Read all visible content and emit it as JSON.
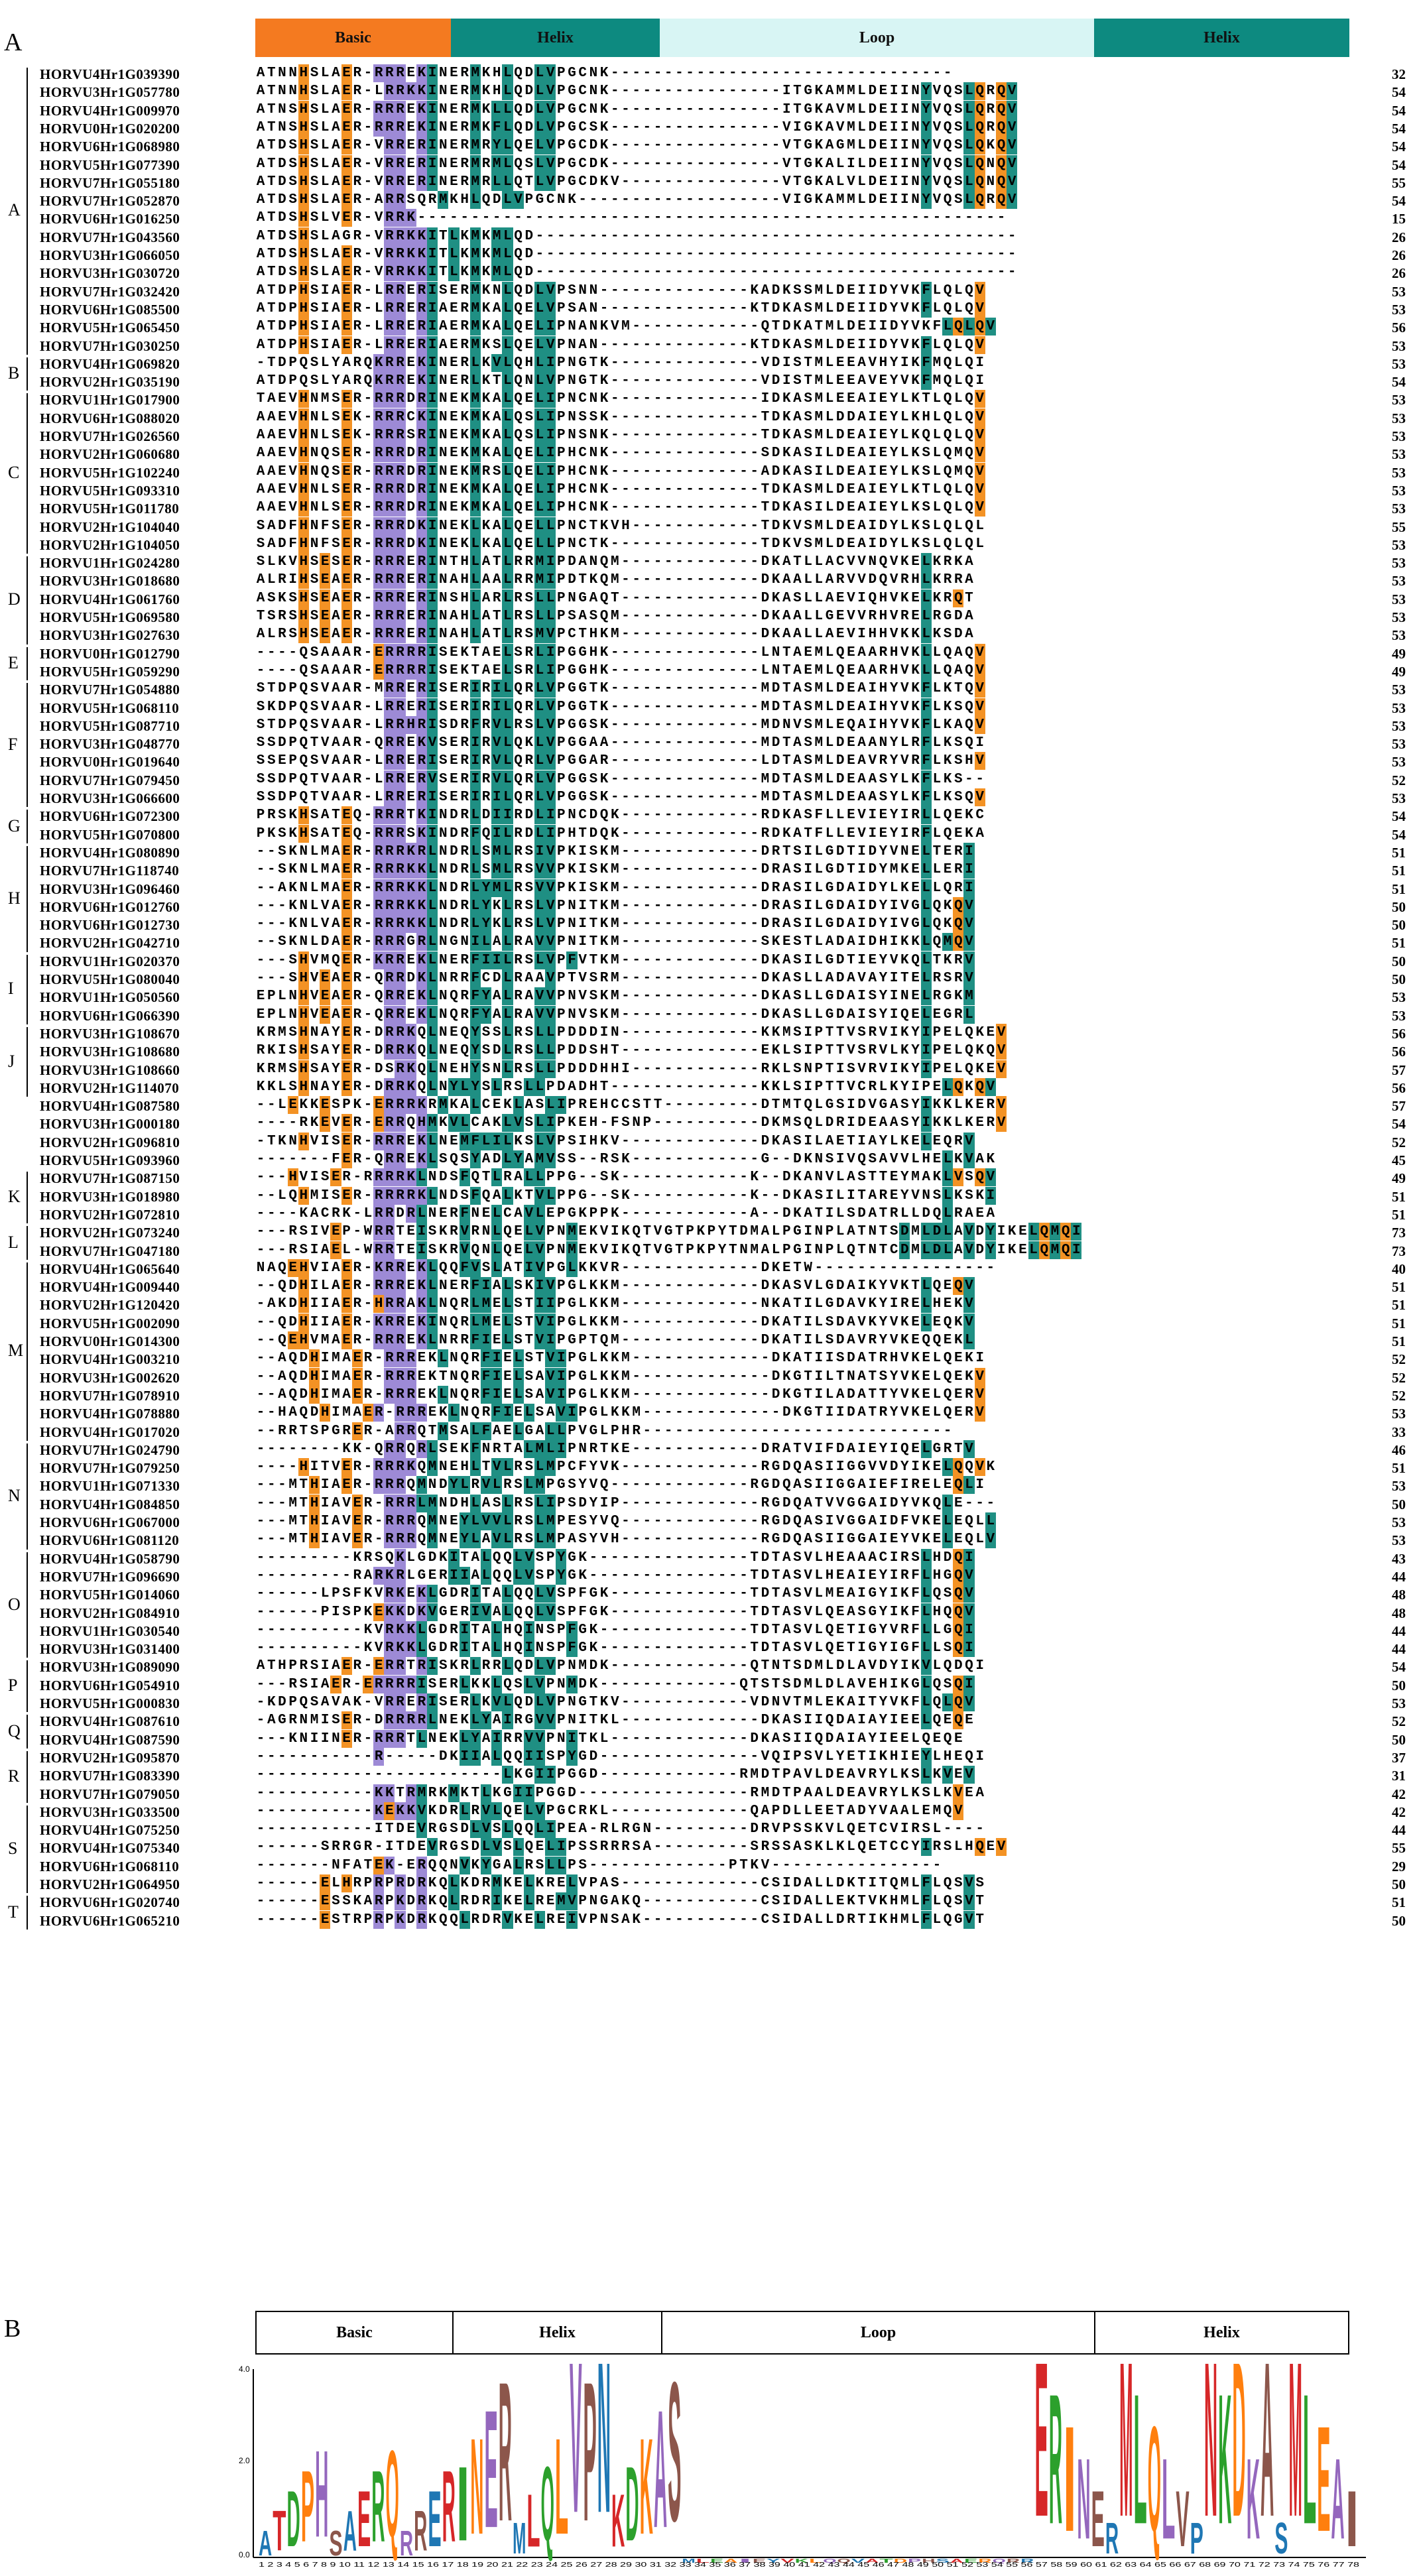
{
  "panels": {
    "a": "A",
    "b": "B"
  },
  "domains": [
    {
      "label": "Basic",
      "color": "#f47a20"
    },
    {
      "label": "Helix",
      "color": "#0d8a80"
    },
    {
      "label": "Loop",
      "color": "#d8f5f4"
    },
    {
      "label": "Helix",
      "color": "#0d8a80"
    }
  ],
  "logo_domains": [
    "Basic",
    "Helix",
    "Loop",
    "Helix"
  ],
  "logo_y_ticks": [
    "0.0",
    "2.0",
    "4.0"
  ],
  "groups": [
    {
      "label": "A",
      "rows": [
        {
          "name": "HORVU4Hr1G039390",
          "seq": "ATNNHSLAER-RRREKINERMKHLQDLVPGCNK--------------------------------",
          "len": "32"
        },
        {
          "name": "HORVU3Hr1G057780",
          "seq": "ATNNHSLAER-LRRKKINERMKHLQDLVPGCNK----------------ITGKAMMLDEIINYVQSLQRQV",
          "len": "54"
        },
        {
          "name": "HORVU4Hr1G009970",
          "seq": "ATNSHSLAER-RRREKINERMKLLQDLVPGCNK----------------ITGKAVMLDEIINYVQSLQRQV",
          "len": "54"
        },
        {
          "name": "HORVU0Hr1G020200",
          "seq": "ATNSHSLAER-RRREKINERMKFLQDLVPGCSK----------------VIGKAVMLDEIINYVQSLQRQV",
          "len": "54"
        },
        {
          "name": "HORVU6Hr1G068980",
          "seq": "ATDSHSLAER-VRRERINERMRYLQELVPGCDK----------------VTGKAGMLDEIINYVQSLQKQV",
          "len": "54"
        },
        {
          "name": "HORVU5Hr1G077390",
          "seq": "ATDSHSLAER-VRRERINERMRMLQSLVPGCDK----------------VTGKALILDEIINYVQSLQNQV",
          "len": "54"
        },
        {
          "name": "HORVU7Hr1G055180",
          "seq": "ATDSHSLAER-VRRERINERMRLLQTLVPGCDKV---------------VTGKALVLDEIINYVQSLQNQV",
          "len": "55"
        },
        {
          "name": "HORVU7Hr1G052870",
          "seq": "ATDSHSLAER-ARRSQRMKHLQDLVPGCNK-------------------VIGKAMMLDEIINYVQSLQRQV",
          "len": "54"
        },
        {
          "name": "HORVU6Hr1G016250",
          "seq": "ATDSHSLVER-VRRK-------------------------------------------------------",
          "len": "15"
        },
        {
          "name": "HORVU7Hr1G043560",
          "seq": "ATDSHSLAGR-VRRKKITLKMKMLQD---------------------------------------------",
          "len": "26"
        },
        {
          "name": "HORVU3Hr1G066050",
          "seq": "ATDSHSLAER-VRRKKITLKMKMLQD---------------------------------------------",
          "len": "26"
        },
        {
          "name": "HORVU3Hr1G030720",
          "seq": "ATDSHSLAER-VRRKKITLKMKMLQD---------------------------------------------",
          "len": "26"
        },
        {
          "name": "HORVU7Hr1G032420",
          "seq": "ATDPHSIAER-LRRERISERMKNLQDLVPSNN--------------KADKSSMLDEIIDYVKFLQLQV",
          "len": "53"
        },
        {
          "name": "HORVU6Hr1G085500",
          "seq": "ATDPHSIAER-LRRERIAERMKALQELVPSAN--------------KTDKASMLDEIIDYVKFLQLQV",
          "len": "53"
        },
        {
          "name": "HORVU5Hr1G065450",
          "seq": "ATDPHSIAER-LRRERIAERMKALQELIPNANKVM------------QTDKATMLDEIIDYVKFLQLQV",
          "len": "56"
        },
        {
          "name": "HORVU7Hr1G030250",
          "seq": "ATDPHSIAER-LRRERIAERMKSLQELVPNAN--------------KTDKASMLDEIIDYVKFLQLQV",
          "len": "53"
        }
      ]
    },
    {
      "label": "B",
      "rows": [
        {
          "name": "HORVU4Hr1G069820",
          "seq": "-TDPQSLYARQKRREKINERLKVLQHLIPNGTK--------------VDISTMLEEAVHYIKFMQLQI",
          "len": "53"
        },
        {
          "name": "HORVU2Hr1G035190",
          "seq": "ATDPQSLYARQKRREKINERLKTLQNLVPNGTK--------------VDISTMLEEAVEYVKFMQLQI",
          "len": "54"
        }
      ]
    },
    {
      "label": "C",
      "rows": [
        {
          "name": "HORVU1Hr1G017900",
          "seq": "TAEVHNMSER-RRRDRINEKMKALQELIPNCNK--------------IDKASMLEEAIEYLKTLQLQV",
          "len": "53"
        },
        {
          "name": "HORVU6Hr1G088020",
          "seq": "AAEVHNLSEK-RRRCKINEKMKALQSLIPNSSK--------------TDKASMLDDAIEYLKHLQLQV",
          "len": "53"
        },
        {
          "name": "HORVU7Hr1G026560",
          "seq": "AAEVHNLSEK-RRRSRINEKMKALQSLIPNSNK--------------TDKASMLDEAIEYLKQLQLQV",
          "len": "53"
        },
        {
          "name": "HORVU2Hr1G060680",
          "seq": "AAEVHNQSER-RRRDRINEKMKALQELIPHCNK--------------SDKASILDEAIEYLKSLQMQV",
          "len": "53"
        },
        {
          "name": "HORVU5Hr1G102240",
          "seq": "AAEVHNQSER-RRRDRINEKMRSLQELIPHCNK--------------ADKASILDEAIEYLKSLQMQV",
          "len": "53"
        },
        {
          "name": "HORVU5Hr1G093310",
          "seq": "AAEVHNLSER-RRRDRINEKMKALQELIPHCNK--------------TDKASMLDEAIEYLKTLQLQV",
          "len": "53"
        },
        {
          "name": "HORVU5Hr1G011780",
          "seq": "AAEVHNLSER-RRRDRINEKMKALQELIPHCNK--------------TDKASILDEAIEYLKSLQLQV",
          "len": "53"
        },
        {
          "name": "HORVU2Hr1G104040",
          "seq": "SADFHNFSER-RRRDKINEKLKALQELLPNCTKVH------------TDKVSMLDEAIDYLKSLQLQL",
          "len": "55"
        },
        {
          "name": "HORVU2Hr1G104050",
          "seq": "SADFHNFSER-RRRDKINEKLKALQELLPNCTK--------------TDKVSMLDEAIDYLKSLQLQL",
          "len": "53"
        }
      ]
    },
    {
      "label": "D",
      "rows": [
        {
          "name": "HORVU1Hr1G024280",
          "seq": "SLKVHSESER-RRRERINTHLATLRRMIPDANQM-------------DKATLLACVVNQVKELKRKA",
          "len": "53"
        },
        {
          "name": "HORVU3Hr1G018680",
          "seq": "ALRIHSEAER-RRRERINAHLAALRRMIPDTKQM-------------DKAALLARVVDQVRHLKRRA",
          "len": "53"
        },
        {
          "name": "HORVU4Hr1G061760",
          "seq": "ASKSHSEAER-RRRERINSHLARLRSLLPNGAQT-------------DKASLLAEVIQHVKELKRQT",
          "len": "53"
        },
        {
          "name": "HORVU5Hr1G069580",
          "seq": "TSRSHSEAER-RRRERINAHLATLRSLLPSASQM-------------DKAALLGEVVRHVRELRGDA",
          "len": "53"
        },
        {
          "name": "HORVU3Hr1G027630",
          "seq": "ALRSHSEAER-RRRERINAHLATLRSMVPCTHKM-------------DKAALLAEVIHHVKKLKSDA",
          "len": "53"
        }
      ]
    },
    {
      "label": "E",
      "rows": [
        {
          "name": "HORVU0Hr1G012790",
          "seq": "----QSAAAR-ERRRRISEKTAELSRLIPGGHK--------------LNTAEMLQEAARHVKLLQAQV",
          "len": "49"
        },
        {
          "name": "HORVU5Hr1G059290",
          "seq": "----QSAAAR-ERRRRISEKTAELSRLIPGGHK--------------LNTAEMLQEAARHVKLLQAQV",
          "len": "49"
        }
      ]
    },
    {
      "label": "F",
      "rows": [
        {
          "name": "HORVU7Hr1G054880",
          "seq": "STDPQSVAAR-MRRERISERIRILQRLVPGGTK--------------MDTASMLDEAIHYVKFLKTQV",
          "len": "53"
        },
        {
          "name": "HORVU5Hr1G068110",
          "seq": "SKDPQSVAAR-LRRERISERIRILQRLVPGGTK--------------MDTASMLDEAIHYVKFLKSQV",
          "len": "53"
        },
        {
          "name": "HORVU5Hr1G087710",
          "seq": "STDPQSVAAR-LRRHRISDRFRVLRSLVPGGSK--------------MDNVSMLEQAIHYVKFLKAQV",
          "len": "53"
        },
        {
          "name": "HORVU3Hr1G048770",
          "seq": "SSDPQTVAAR-QRREKVSERIRVLQKLVPGGAA--------------MDTASMLDEAANYLRFLKSQI",
          "len": "53"
        },
        {
          "name": "HORVU0Hr1G019640",
          "seq": "SSEPQSVAAR-LRRERISERIRVLQRLVPGGAR--------------LDTASMLDEAVRYVRFLKSHV",
          "len": "53"
        },
        {
          "name": "HORVU7Hr1G079450",
          "seq": "SSDPQTVAAR-LRRERVSERIRVLQRLVPGGSK--------------MDTASMLDEAASYLKFLKS--",
          "len": "52"
        },
        {
          "name": "HORVU3Hr1G066600",
          "seq": "SSDPQTVAAR-LRRERISERIRILQRLVPGGSK--------------MDTASMLDEAASYLKFLKSQV",
          "len": "53"
        }
      ]
    },
    {
      "label": "G",
      "rows": [
        {
          "name": "HORVU6Hr1G072300",
          "seq": "PRSKHSATEQ-RRRTKINDRLDIIRDLIPNCDQK-------------RDKASFLLEVIEYIRLLQEKC",
          "len": "54"
        },
        {
          "name": "HORVU5Hr1G070800",
          "seq": "PKSKHSATEQ-RRRSKINDRFQILRDLIPHTDQK-------------RDKATFLLEVIEYIRFLQEKA",
          "len": "54"
        }
      ]
    },
    {
      "label": "H",
      "rows": [
        {
          "name": "HORVU4Hr1G080890",
          "seq": "--SKNLMAER-RRRKRLNDRLSMLRSIVPKISKM-------------DRTSILGDTIDYVNELTERI",
          "len": "51"
        },
        {
          "name": "HORVU7Hr1G118740",
          "seq": "--SKNLMAER-RRRKKLNDRLSMLRSVVPKISKM-------------DRASILGDTIDYMKELLERI",
          "len": "51"
        },
        {
          "name": "HORVU3Hr1G096460",
          "seq": "--AKNLMAER-RRRKKLNDRLYMLRSVVPKISKM-------------DRASILGDAIDYLKELLQRI",
          "len": "51"
        },
        {
          "name": "HORVU6Hr1G012760",
          "seq": "---KNLVAER-RRRKKLNDRLYKLRSLVPNITKM-------------DRASILGDAIDYIVGLQKQV",
          "len": "50"
        },
        {
          "name": "HORVU6Hr1G012730",
          "seq": "---KNLVAER-RRRKKLNDRLYKLRSLVPNITKM-------------DRASILGDAIDYIVGLQKQV",
          "len": "50"
        },
        {
          "name": "HORVU2Hr1G042710",
          "seq": "--SKNLDAER-RRRGRLNGNILALRAVVPNITKM-------------SKESTLADAIDHIKKLQMQV",
          "len": "51"
        }
      ]
    },
    {
      "label": "I",
      "rows": [
        {
          "name": "HORVU1Hr1G020370",
          "seq": "---SHVMQER-KRREKLNERFIILRSLVPFVTKM-------------DKASILGDTIEYVKQLTKRV",
          "len": "50"
        },
        {
          "name": "HORVU5Hr1G080040",
          "seq": "---SHVEAER-QRRDKLNRRFCDLRAAVPTVSRM-------------DKASLLADAVAYITELRSRV",
          "len": "50"
        },
        {
          "name": "HORVU1Hr1G050560",
          "seq": "EPLNHVEAER-QRREKLNQRFYALRAVVPNVSKM-------------DKASLLGDAISYINELRGKM",
          "len": "53"
        },
        {
          "name": "HORVU6Hr1G066390",
          "seq": "EPLNHVEAER-QRREKLNQRFYALRAVVPNVSKM-------------DKASLLGDAISYIQELEGRL",
          "len": "53"
        }
      ]
    },
    {
      "label": "J",
      "rows": [
        {
          "name": "HORVU3Hr1G108670",
          "seq": "KRMSHNAYER-DRRKQLNEQYSSLRSLLPDDDIN-------------KKMSIPTTVSRVIKYIPELQKEV",
          "len": "56"
        },
        {
          "name": "HORVU3Hr1G108680",
          "seq": "RKISHSAYER-DRRKQLNEQYSDLRSLLPDDSHT-------------EKLSIPTTVSRVLKYIPELQKQV",
          "len": "56"
        },
        {
          "name": "HORVU3Hr1G108660",
          "seq": "KRMSHSAYER-DSRKQLNEHYSNLRSLLPDDDHHI------------RKLSNPTISVRVIKYIPELQKEV",
          "len": "57"
        },
        {
          "name": "HORVU2Hr1G114070",
          "seq": "KKLSHNAYER-DRRKQLNYLYSLRSLLPDADHT--------------KKLSIPTTVCRLKYIPELQKQV",
          "len": "56"
        }
      ]
    },
    {
      "label": "",
      "rows": [
        {
          "name": "HORVU4Hr1G087580",
          "seq": "--LEKKESPK-ERRRKRMKALCEKLASLIPREHCCSTT---------DTMTQLGSIDVGASYIKKLKERV",
          "len": "57"
        },
        {
          "name": "HORVU3Hr1G000180",
          "seq": "----RKEVER-ERRQHMKVLCAKLVSLIPKEH-FSNP----------DKMSQLDRIDEAASYIKKLKERV",
          "len": "54"
        },
        {
          "name": "HORVU2Hr1G096810",
          "seq": "-TKNHVISER-RRREKLNEMFLILKSLVPSIHKV-------------DKASILAETIAYLKELEQRV",
          "len": "52"
        },
        {
          "name": "HORVU5Hr1G093960",
          "seq": "-------FER-QRREKLSQSYADLYAMVSS--RSK------------G--DKNSIVQSAVVLHELKVAK",
          "len": "45"
        }
      ]
    },
    {
      "label": "K",
      "rows": [
        {
          "name": "HORVU7Hr1G087150",
          "seq": "---HVISER-RRRRKLNDSFQTLRALLPPG--SK------------K--DKANVLASTTEYMAKLVSQV",
          "len": "49"
        },
        {
          "name": "HORVU3Hr1G018980",
          "seq": "--LQHMISER-RRRRKLNDSFQALKTVLPPG--SK-----------K--DKASILITAREYVNSLKSKI",
          "len": "51"
        },
        {
          "name": "HORVU2Hr1G072810",
          "seq": "----KACRK-LRRDRLNERFNELCAVLEPGKPPK------------A--DKATILSDATRLLDQLRAEA",
          "len": "51"
        }
      ]
    },
    {
      "label": "L",
      "rows": [
        {
          "name": "HORVU2Hr1G073240",
          "seq": "---RSIVEP-WRRTEISKRVRNLQELVPNMEKVIKQTVGTPKPYTDMALPGINPLATNTSDMLDLAVDYIKELQMQI",
          "len": "73"
        },
        {
          "name": "HORVU7Hr1G047180",
          "seq": "---RSIAEL-WRRTEISKRVQNLQELVPNMEKVIKQTVGTPKPYTNMALPGINPLQTNTCDMLDLAVDYIKELQMQI",
          "len": "73"
        }
      ]
    },
    {
      "label": "M",
      "rows": [
        {
          "name": "HORVU4Hr1G065640",
          "seq": "NAQEHVIAER-KRREKLQQFVSLATIVPGLKKVR-------------DKETW-----------------",
          "len": "40"
        },
        {
          "name": "HORVU4Hr1G009440",
          "seq": "--QDHILAER-RRREKLNERFIALSKIVPGLKKM-------------DKASVLGDAIKYVKTLQEQV",
          "len": "51"
        },
        {
          "name": "HORVU2Hr1G120420",
          "seq": "-AKDHIIAER-HRRAKLNQRLMELSTIIPGLKKM-------------NKATILGDAVKYIRELHEKV",
          "len": "51"
        },
        {
          "name": "HORVU5Hr1G002090",
          "seq": "--QDHIIAER-KRREKINQRLMELSTVIPGLKKM-------------DKATILSDAVKYVKELEQKV",
          "len": "51"
        },
        {
          "name": "HORVU0Hr1G014300",
          "seq": "--QEHVMAER-RRREKLNRRFIELSTVIPGPTQM-------------DKATILSDAVRYVKEQQEKL",
          "len": "51"
        },
        {
          "name": "HORVU4Hr1G003210",
          "seq": "--AQDHIMAER-RRREKLNQRFIELSTVIPGLKKM-------------DKATIISDATRHVKELQEKI",
          "len": "52"
        },
        {
          "name": "HORVU3Hr1G002620",
          "seq": "--AQDHIMAER-RRREKTNQRFIELSAVIPGLKKM-------------DKGTILTNATSYVKELQEKV",
          "len": "52"
        },
        {
          "name": "HORVU7Hr1G078910",
          "seq": "--AQDHIMAER-RRREKLNQRFIELSAVIPGLKKM-------------DKGTILADATTYVKELQERV",
          "len": "52"
        },
        {
          "name": "HORVU4Hr1G078880",
          "seq": "--HAQDHIMAER-RRREKLNQRFIELSAVIPGLKKM-------------DKGTIIDATRYVKELQERV",
          "len": "53"
        },
        {
          "name": "HORVU4Hr1G017020",
          "seq": "--RRTSPGRER-ARRQTMSALFAELGALLPVGLPHR-----------------------------",
          "len": "33"
        }
      ]
    },
    {
      "label": "N",
      "rows": [
        {
          "name": "HORVU7Hr1G024790",
          "seq": "--------KK-QRRQRLSEKFNRTALMLIPNRTKE------------DRATVIFDAIEYIQELGRTV",
          "len": "46"
        },
        {
          "name": "HORVU7Hr1G079250",
          "seq": "----HITVER-RRRKQMNEHLTVLRSLMPCFYVK-------------RGDQASIIGGVVDYIKELQQVK",
          "len": "51"
        },
        {
          "name": "HORVU1Hr1G071330",
          "seq": "---MTHIAER-RRRQMNDYLRVLRSLMPGSYVQ-------------RGDQASIIGGAIEFIRELEQLI",
          "len": "53"
        },
        {
          "name": "HORVU4Hr1G084850",
          "seq": "---MTHIAVER-RRRLMNDHLASLRSLIPSDYIP-------------RGDQATVVGGAIDYVKQLE---",
          "len": "50"
        },
        {
          "name": "HORVU6Hr1G067000",
          "seq": "---MTHIAVER-RRRQMNEYLVVLRSLMPESYVQ-------------RGDQASIVGGAIDFVKELEQLL",
          "len": "53"
        },
        {
          "name": "HORVU6Hr1G081120",
          "seq": "---MTHIAVER-RRRQMNEYLAVLRSLMPASYVH-------------RGDQASIIGGAIEYVKELEQLV",
          "len": "53"
        }
      ]
    },
    {
      "label": "O",
      "rows": [
        {
          "name": "HORVU4Hr1G058790",
          "seq": "---------KRSQKLGDKITALQQLVSPYGK---------------TDTASVLHEAAACIRSLHDQI",
          "len": "43"
        },
        {
          "name": "HORVU7Hr1G096690",
          "seq": "---------RARKRLGERIIALQQLVSPYGK---------------TDTASVLHEAIEYIRFLHGQV",
          "len": "44"
        },
        {
          "name": "HORVU5Hr1G014060",
          "seq": "------LPSFKVRKEKLGDRITALQQLVSPFGK-------------TDTASVLMEAIGYIKFLQSQV",
          "len": "48"
        },
        {
          "name": "HORVU2Hr1G084910",
          "seq": "------PISPKEKKDKVGERIVALQQLVSPFGK-------------TDTASVLQEASGYIKFLHQQV",
          "len": "48"
        },
        {
          "name": "HORVU1Hr1G030540",
          "seq": "----------KVRKKLGDRITALHQINSPFGK--------------TDTASVLQETIGYVRFLLGQI",
          "len": "44"
        },
        {
          "name": "HORVU3Hr1G031400",
          "seq": "----------KVRKKLGDRITALHQINSPFGK--------------TDTASVLQETIGYIGFLLSQI",
          "len": "44"
        }
      ]
    },
    {
      "label": "P",
      "rows": [
        {
          "name": "HORVU3Hr1G089090",
          "seq": "ATHPRSIAER-ERRTRISKRLRRLQDLVPNMDK-------------QTNTSDMLDLAVDYIKVLQDQI",
          "len": "54"
        },
        {
          "name": "HORVU6Hr1G054910",
          "seq": "---RSIAER-ERRRRISERLKKLQSLVPNMDK-------------QTSTSDMLDLAVEHIKGLQSQI",
          "len": "50"
        },
        {
          "name": "HORVU5Hr1G000830",
          "seq": "-KDPQSAVAK-VRRERISERLKVLQDLVPNGTKV------------VDNVTMLEKAITYVKFLQLQV",
          "len": "53"
        }
      ]
    },
    {
      "label": "Q",
      "rows": [
        {
          "name": "HORVU4Hr1G087610",
          "seq": "-AGRNMISER-DRRRRLNEKLYAIRGVVPNITKL-------------DKASIIQDAIAYIEELQEQE",
          "len": "52"
        },
        {
          "name": "HORVU4Hr1G087590",
          "seq": "---KNIINER-RRRTLNEKLYAIRRVVPNITKL-------------DKASIIQDAIAYIEELQEQE",
          "len": "50"
        }
      ]
    },
    {
      "label": "R",
      "rows": [
        {
          "name": "HORVU2Hr1G095870",
          "seq": "-----------R-----DKIIALQQIISPYGD---------------VQIPSVLYETIKHIEYLHEQI",
          "len": "37"
        },
        {
          "name": "HORVU7Hr1G083390",
          "seq": "-----------------------LKGIIPGGD-------------RMDTPAVLDEAVRYLKSLKVEV",
          "len": "31"
        },
        {
          "name": "HORVU7Hr1G079050",
          "seq": "-----------KKTRMRKMKTLKGIIPGGD----------------RMDTPAALDEAVRYLKSLKVEA",
          "len": "42"
        }
      ]
    },
    {
      "label": "S",
      "rows": [
        {
          "name": "HORVU3Hr1G033500",
          "seq": "-----------KEKKVKDRLRVLQELVPGCRKL-------------QAPDLLEETADYVAALEMQV",
          "len": "42"
        },
        {
          "name": "HORVU4Hr1G075250",
          "seq": "-----------ITDEVRGSDLVSLQQLIPEA-RLRGN---------DRVPSSKVLQETCVIRSL----",
          "len": "44"
        },
        {
          "name": "HORVU4Hr1G075340",
          "seq": "------SRRGR-ITDEVRGSDLVSLQELIPSSRRRSA---------SRSSASKLKLQETCCYIRSLHQEV",
          "len": "55"
        },
        {
          "name": "HORVU6Hr1G068110",
          "seq": "-------NFATEK-ERQQNVKYGALRSLLPS-------------PTKV----------------",
          "len": "29"
        },
        {
          "name": "HORVU2Hr1G064950",
          "seq": "------ELHRPRPRDRKQLKDRMKELKRELVPAS-------------CSIDALLDKTITQMLFLQSVS",
          "len": "50"
        }
      ]
    },
    {
      "label": "T",
      "rows": [
        {
          "name": "HORVU6Hr1G020740",
          "seq": "------ESSKARPKDRKQLRDRIKELREMVPNGAKQ-----------CSIDALLEKTVKHMLFLQSVT",
          "len": "51"
        },
        {
          "name": "HORVU6Hr1G065210",
          "seq": "------ESTRPRPKDRKQQLRDRVKELREIVPNSAK-----------CSIDALLDRTIKHMLFLQGVT",
          "len": "50"
        }
      ]
    }
  ],
  "logo_letters": [
    "A",
    "T",
    "D",
    "P",
    "H",
    "S",
    "A",
    "E",
    "R",
    "Q",
    "R",
    "R",
    "E",
    "R",
    "I",
    "N",
    "E",
    "R",
    "M",
    "L",
    "Q",
    "L",
    "V",
    "P",
    "N",
    "K",
    "D",
    "K",
    "A",
    "S",
    "M",
    "L",
    "E",
    "A",
    "I",
    "E",
    "Y",
    "V",
    "K",
    "L",
    "Q",
    "Q",
    "V"
  ],
  "logo_positions_note": "1 2 3 4 5 6 7 8 9 10 11 12 13 14 15 16 17 18 19 20 21 22 23 24 25 26 27 28 29 30 31 32 33 34 35 36 37 38 39 40 41 42 43 44 45 46 47 48 49 50 51 52 53 54 55 56 57 58 59 60 61 62 63 64 65 66 67 68 69 70 71 72 73 74 75 76 77 78"
}
